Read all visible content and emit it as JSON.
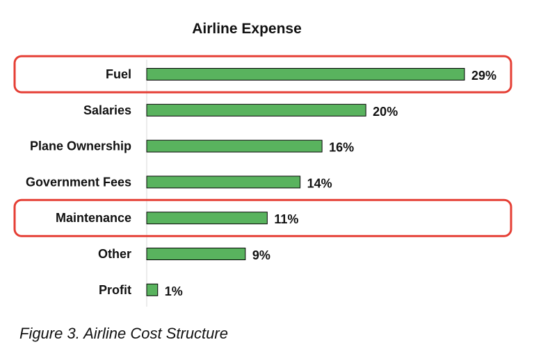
{
  "chart_data": {
    "type": "bar",
    "orientation": "horizontal",
    "title": "Airline Expense",
    "categories": [
      "Fuel",
      "Salaries",
      "Plane Ownership",
      "Government Fees",
      "Maintenance",
      "Other",
      "Profit"
    ],
    "values": [
      29,
      20,
      16,
      14,
      11,
      9,
      1
    ],
    "data_labels": [
      "29%",
      "20%",
      "16%",
      "14%",
      "11%",
      "9%",
      "1%"
    ],
    "highlighted_categories": [
      "Fuel",
      "Maintenance"
    ],
    "bar_color": "#59b35e",
    "highlight_color": "#e53e34",
    "grid": false
  },
  "caption": "Figure 3. Airline Cost Structure"
}
